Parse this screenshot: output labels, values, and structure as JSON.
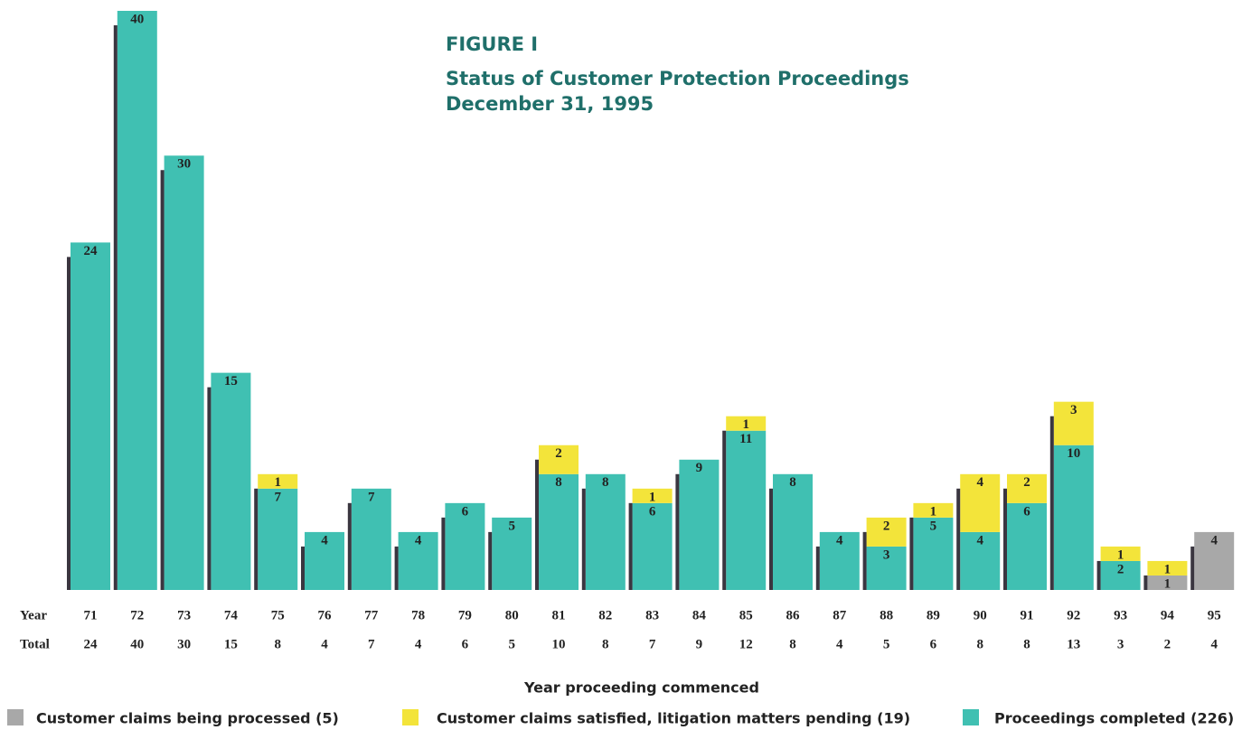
{
  "chart_data": {
    "type": "bar",
    "stacked": true,
    "title": "FIGURE I",
    "subtitle": "Status of Customer Protection Proceedings",
    "date": "December 31, 1995",
    "x_label": "Year proceeding commenced",
    "row_labels": [
      "Year",
      "Total"
    ],
    "categories": [
      "71",
      "72",
      "73",
      "74",
      "75",
      "76",
      "77",
      "78",
      "79",
      "80",
      "81",
      "82",
      "83",
      "84",
      "85",
      "86",
      "87",
      "88",
      "89",
      "90",
      "91",
      "92",
      "93",
      "94",
      "95"
    ],
    "totals": [
      24,
      40,
      30,
      15,
      8,
      4,
      7,
      4,
      6,
      5,
      10,
      8,
      7,
      9,
      12,
      8,
      4,
      5,
      6,
      8,
      8,
      13,
      3,
      2,
      4
    ],
    "series": [
      {
        "name": "Customer claims being processed (5)",
        "color": "#a8a8a8",
        "values": [
          null,
          null,
          null,
          null,
          null,
          null,
          null,
          null,
          null,
          null,
          null,
          null,
          null,
          null,
          null,
          null,
          null,
          null,
          null,
          null,
          null,
          null,
          null,
          1,
          4
        ]
      },
      {
        "name": "Customer claims satisfied, litigation matters pending (19)",
        "color": "#f3e43a",
        "values": [
          null,
          null,
          null,
          null,
          1,
          null,
          null,
          null,
          null,
          null,
          2,
          null,
          1,
          null,
          1,
          null,
          null,
          2,
          1,
          4,
          2,
          3,
          1,
          1,
          null
        ]
      },
      {
        "name": "Proceedings completed (226)",
        "color": "#40c0b2",
        "values": [
          24,
          40,
          30,
          15,
          7,
          4,
          7,
          4,
          6,
          5,
          8,
          8,
          6,
          9,
          11,
          8,
          4,
          3,
          5,
          4,
          6,
          10,
          2,
          null,
          null
        ]
      }
    ]
  }
}
